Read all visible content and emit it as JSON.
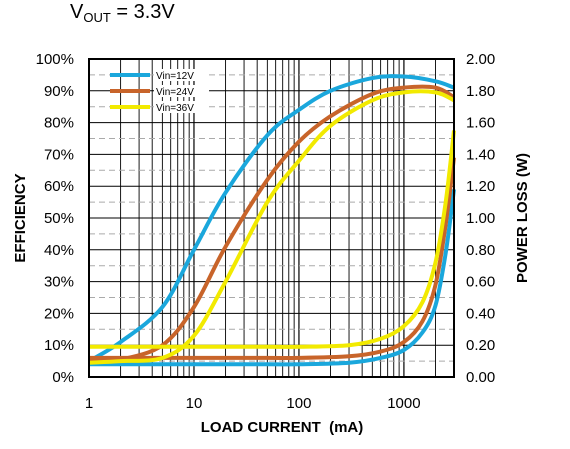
{
  "chart_data": {
    "type": "line",
    "title": {
      "main": "V",
      "sub": "OUT",
      "rest": " = 3.3V"
    },
    "xlabel": "LOAD CURRENT  (mA)",
    "ylabel_left": "EFFICIENCY",
    "ylabel_right": "POWER LOSS (W)",
    "x_scale": "log",
    "xlim": [
      1,
      3000
    ],
    "ylim_left": [
      0,
      100
    ],
    "ylim_right": [
      0,
      2.0
    ],
    "grid": true,
    "legend_position": "top-left",
    "x_ticks": [
      {
        "value": 1,
        "label": "1"
      },
      {
        "value": 10,
        "label": "10"
      },
      {
        "value": 100,
        "label": "100"
      },
      {
        "value": 1000,
        "label": "1000"
      }
    ],
    "y_ticks_left": [
      {
        "value": 0,
        "label": "0%"
      },
      {
        "value": 10,
        "label": "10%"
      },
      {
        "value": 20,
        "label": "20%"
      },
      {
        "value": 30,
        "label": "30%"
      },
      {
        "value": 40,
        "label": "40%"
      },
      {
        "value": 50,
        "label": "50%"
      },
      {
        "value": 60,
        "label": "60%"
      },
      {
        "value": 70,
        "label": "70%"
      },
      {
        "value": 80,
        "label": "80%"
      },
      {
        "value": 90,
        "label": "90%"
      },
      {
        "value": 100,
        "label": "100%"
      }
    ],
    "y_ticks_right": [
      {
        "value": 0.0,
        "label": "0.00"
      },
      {
        "value": 0.2,
        "label": "0.20"
      },
      {
        "value": 0.4,
        "label": "0.40"
      },
      {
        "value": 0.6,
        "label": "0.60"
      },
      {
        "value": 0.8,
        "label": "0.80"
      },
      {
        "value": 1.0,
        "label": "1.00"
      },
      {
        "value": 1.2,
        "label": "1.20"
      },
      {
        "value": 1.4,
        "label": "1.40"
      },
      {
        "value": 1.6,
        "label": "1.60"
      },
      {
        "value": 1.8,
        "label": "1.80"
      },
      {
        "value": 2.0,
        "label": "2.00"
      }
    ],
    "series": [
      {
        "name": "Vin=12V",
        "color": "#1aa7dc",
        "efficiency": {
          "x": [
            1,
            2,
            5,
            10,
            20,
            50,
            100,
            200,
            500,
            1000,
            2000,
            3000
          ],
          "y": [
            5,
            11,
            22,
            40,
            58,
            76,
            84,
            90,
            94,
            94.5,
            93,
            91
          ]
        },
        "power_loss": {
          "x": [
            1,
            5,
            10,
            50,
            100,
            300,
            600,
            1000,
            1500,
            2000,
            2500,
            3000
          ],
          "y": [
            0.08,
            0.08,
            0.08,
            0.08,
            0.08,
            0.09,
            0.12,
            0.17,
            0.28,
            0.45,
            0.78,
            1.18
          ]
        }
      },
      {
        "name": "Vin=24V",
        "color": "#c8642a",
        "efficiency": {
          "x": [
            1,
            2,
            5,
            10,
            20,
            50,
            100,
            200,
            500,
            1000,
            2000,
            3000
          ],
          "y": [
            5,
            5.5,
            10,
            22,
            41,
            62,
            74,
            82,
            89,
            91,
            91,
            88
          ]
        },
        "power_loss": {
          "x": [
            1,
            5,
            10,
            50,
            100,
            300,
            600,
            1000,
            1500,
            2000,
            2500,
            3000
          ],
          "y": [
            0.12,
            0.12,
            0.12,
            0.12,
            0.12,
            0.13,
            0.16,
            0.22,
            0.35,
            0.58,
            0.96,
            1.38
          ]
        }
      },
      {
        "name": "Vin=36V",
        "color": "#f2ea00",
        "efficiency": {
          "x": [
            1,
            2,
            5,
            10,
            20,
            50,
            100,
            200,
            500,
            1000,
            2000,
            3000
          ],
          "y": [
            4.5,
            5,
            6,
            13,
            30,
            55,
            68,
            79,
            87,
            89.5,
            89.5,
            87
          ]
        },
        "power_loss": {
          "x": [
            1,
            5,
            10,
            50,
            100,
            300,
            600,
            1000,
            1500,
            2000,
            2500,
            3000
          ],
          "y": [
            0.19,
            0.19,
            0.19,
            0.19,
            0.19,
            0.2,
            0.24,
            0.32,
            0.47,
            0.72,
            1.1,
            1.55
          ]
        }
      }
    ]
  }
}
